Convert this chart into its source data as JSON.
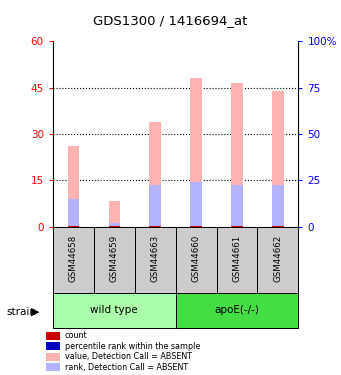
{
  "title": "GDS1300 / 1416694_at",
  "samples": [
    "GSM44658",
    "GSM44659",
    "GSM44663",
    "GSM44660",
    "GSM44661",
    "GSM44662"
  ],
  "group_labels": [
    "wild type",
    "apoE(-/-)"
  ],
  "value_absent": [
    26.0,
    8.5,
    34.0,
    48.0,
    46.5,
    44.0
  ],
  "rank_absent": [
    9.0,
    1.2,
    13.5,
    14.5,
    13.5,
    13.5
  ],
  "ylim_left": [
    0,
    60
  ],
  "ylim_right": [
    0,
    100
  ],
  "yticks_left": [
    0,
    15,
    30,
    45,
    60
  ],
  "ytick_labels_left": [
    "0",
    "15",
    "30",
    "45",
    "60"
  ],
  "yticks_right": [
    0,
    25,
    50,
    75,
    100
  ],
  "ytick_labels_right": [
    "0",
    "25",
    "50",
    "75",
    "100%"
  ],
  "color_count": "#cc0000",
  "color_percentile": "#0000bb",
  "color_value_absent": "#ffb3b3",
  "color_rank_absent": "#b3b3ff",
  "color_wt_bg": "#aaffaa",
  "color_apoe_bg": "#44dd44",
  "color_sample_bg": "#cccccc",
  "strain_label": "strain",
  "legend_items": [
    {
      "label": "count",
      "color": "#cc0000"
    },
    {
      "label": "percentile rank within the sample",
      "color": "#0000bb"
    },
    {
      "label": "value, Detection Call = ABSENT",
      "color": "#ffb3b3"
    },
    {
      "label": "rank, Detection Call = ABSENT",
      "color": "#b3b3ff"
    }
  ]
}
